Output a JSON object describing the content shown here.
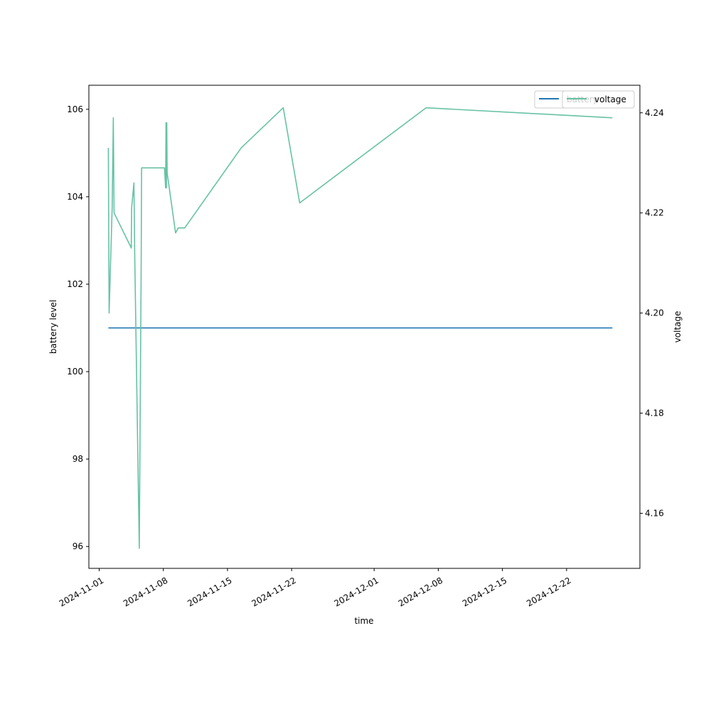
{
  "chart_data": {
    "type": "line",
    "xlabel": "time",
    "ylabel": "battery level",
    "ylabel_right": "voltage",
    "xlim": [
      "2024-10-30T21:00",
      "2024-12-30T00:00"
    ],
    "ylim": [
      95.5,
      106.55
    ],
    "ylim_right": [
      4.149,
      4.2455
    ],
    "x_ticks": [
      "2024-11-01",
      "2024-11-08",
      "2024-11-15",
      "2024-11-22",
      "2024-12-01",
      "2024-12-08",
      "2024-12-15",
      "2024-12-22"
    ],
    "y_ticks": [
      96,
      98,
      100,
      102,
      104,
      106
    ],
    "y_ticks_right": [
      "4.16",
      "4.18",
      "4.20",
      "4.22",
      "4.24"
    ],
    "grid": false,
    "legend_placement": "top-right",
    "series": [
      {
        "name": "battery",
        "axis": "left",
        "color": "#1f77b4",
        "points": [
          {
            "x": "2024-11-02T00:00",
            "y": 101
          },
          {
            "x": "2024-12-27T00:00",
            "y": 101
          }
        ]
      },
      {
        "name": "voltage",
        "axis": "right",
        "color": "#66c2a5",
        "points": [
          {
            "x": "2024-11-02T00:00",
            "y": 4.233
          },
          {
            "x": "2024-11-02T02:00",
            "y": 4.2
          },
          {
            "x": "2024-11-02T10:00",
            "y": 4.221
          },
          {
            "x": "2024-11-02T13:00",
            "y": 4.239
          },
          {
            "x": "2024-11-02T15:00",
            "y": 4.22
          },
          {
            "x": "2024-11-04T12:00",
            "y": 4.213
          },
          {
            "x": "2024-11-04T13:00",
            "y": 4.221
          },
          {
            "x": "2024-11-04T19:00",
            "y": 4.226
          },
          {
            "x": "2024-11-04T21:00",
            "y": 4.212
          },
          {
            "x": "2024-11-05T09:00",
            "y": 4.153
          },
          {
            "x": "2024-11-05T14:00",
            "y": 4.21
          },
          {
            "x": "2024-11-05T15:00",
            "y": 4.229
          },
          {
            "x": "2024-11-08T03:00",
            "y": 4.229
          },
          {
            "x": "2024-11-08T06:00",
            "y": 4.225
          },
          {
            "x": "2024-11-08T07:00",
            "y": 4.238
          },
          {
            "x": "2024-11-08T08:00",
            "y": 4.225
          },
          {
            "x": "2024-11-08T09:00",
            "y": 4.238
          },
          {
            "x": "2024-11-08T10:00",
            "y": 4.228
          },
          {
            "x": "2024-11-09T08:00",
            "y": 4.216
          },
          {
            "x": "2024-11-09T15:00",
            "y": 4.217
          },
          {
            "x": "2024-11-10T08:00",
            "y": 4.217
          },
          {
            "x": "2024-11-16T12:00",
            "y": 4.233
          },
          {
            "x": "2024-11-21T02:00",
            "y": 4.241
          },
          {
            "x": "2024-11-22T21:00",
            "y": 4.222
          },
          {
            "x": "2024-12-06T16:00",
            "y": 4.241
          },
          {
            "x": "2024-12-27T00:00",
            "y": 4.239
          }
        ]
      }
    ]
  }
}
